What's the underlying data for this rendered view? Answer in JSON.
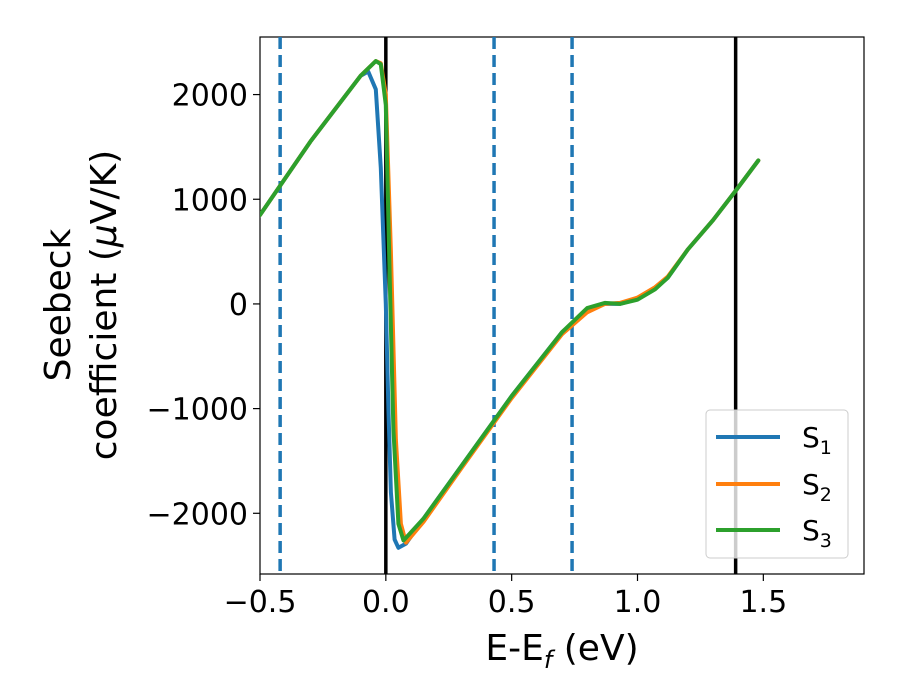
{
  "chart_data": {
    "type": "line",
    "xlabel": {
      "main": "E-E",
      "sub": "f",
      "unit": " (eV)"
    },
    "ylabel": {
      "line1": "Seebeck",
      "line2": "coefficient  (",
      "mu": "μ",
      "unit": "V/K)"
    },
    "xlim": [
      -0.5,
      1.9
    ],
    "ylim": [
      -2580,
      2550
    ],
    "xticks": [
      -0.5,
      0.0,
      0.5,
      1.0,
      1.5
    ],
    "xtick_labels": [
      "−0.5",
      "0.0",
      "0.5",
      "1.0",
      "1.5"
    ],
    "yticks": [
      -2000,
      -1000,
      0,
      1000,
      2000
    ],
    "ytick_labels": [
      "−2000",
      "−1000",
      "0",
      "1000",
      "2000"
    ],
    "grid": false,
    "legend_position": "bottom-right",
    "vlines_solid": [
      0.0,
      1.39
    ],
    "vlines_dashed": [
      -0.42,
      0.43,
      0.74
    ],
    "colors": {
      "S1": "#1f77b4",
      "S2": "#ff7f0e",
      "S3": "#2ca02c",
      "solid": "#000000",
      "dashed": "#1f77b4"
    },
    "series": [
      {
        "name": "S1",
        "label_main": "S",
        "label_sub": "1",
        "color": "#1f77b4",
        "x": [
          -0.5,
          -0.3,
          -0.1,
          -0.07,
          -0.04,
          -0.02,
          0.0,
          0.01,
          0.02,
          0.035,
          0.05,
          0.08,
          0.15,
          0.3,
          0.5,
          0.7,
          0.8,
          0.87,
          0.93,
          1.0,
          1.07,
          1.12,
          1.2,
          1.3,
          1.39,
          1.48
        ],
        "y": [
          850,
          1550,
          2180,
          2220,
          2050,
          1300,
          0,
          -1000,
          -1800,
          -2250,
          -2330,
          -2290,
          -2050,
          -1550,
          -880,
          -270,
          -60,
          0,
          0,
          50,
          150,
          250,
          520,
          800,
          1080,
          1370
        ]
      },
      {
        "name": "S2",
        "label_main": "S",
        "label_sub": "2",
        "color": "#ff7f0e",
        "x": [
          -0.5,
          -0.3,
          -0.1,
          -0.04,
          -0.02,
          0.0,
          0.02,
          0.04,
          0.06,
          0.08,
          0.15,
          0.3,
          0.5,
          0.7,
          0.8,
          0.87,
          0.93,
          1.0,
          1.07,
          1.12,
          1.2,
          1.3,
          1.39,
          1.48
        ],
        "y": [
          850,
          1550,
          2180,
          2320,
          2300,
          2000,
          500,
          -1300,
          -2100,
          -2280,
          -2080,
          -1570,
          -900,
          -290,
          -80,
          0,
          10,
          60,
          160,
          260,
          520,
          800,
          1080,
          1370
        ]
      },
      {
        "name": "S3",
        "label_main": "S",
        "label_sub": "3",
        "color": "#2ca02c",
        "x": [
          -0.5,
          -0.3,
          -0.1,
          -0.04,
          -0.02,
          0.0,
          0.015,
          0.03,
          0.05,
          0.07,
          0.15,
          0.3,
          0.5,
          0.7,
          0.8,
          0.87,
          0.93,
          1.0,
          1.07,
          1.12,
          1.2,
          1.3,
          1.39,
          1.48
        ],
        "y": [
          850,
          1550,
          2180,
          2320,
          2290,
          1900,
          300,
          -1200,
          -2100,
          -2260,
          -2050,
          -1550,
          -880,
          -270,
          -40,
          10,
          0,
          40,
          140,
          250,
          520,
          800,
          1080,
          1370
        ]
      }
    ]
  }
}
